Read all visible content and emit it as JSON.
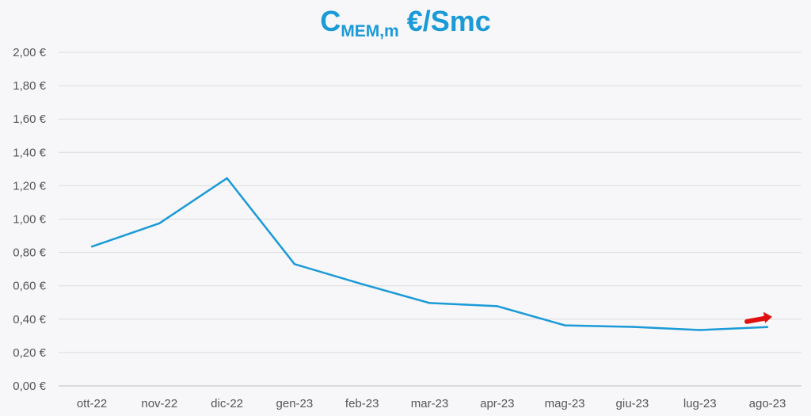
{
  "chart_data": {
    "type": "line",
    "title": {
      "main": "C",
      "subscript": "MEM,m",
      "unit": "€/Smc"
    },
    "categories": [
      "ott-22",
      "nov-22",
      "dic-22",
      "gen-23",
      "feb-23",
      "mar-23",
      "apr-23",
      "mag-23",
      "giu-23",
      "lug-23",
      "ago-23"
    ],
    "series": [
      {
        "values": [
          0.835,
          0.975,
          1.245,
          0.73,
          0.61,
          0.497,
          0.478,
          0.363,
          0.354,
          0.335,
          0.353
        ],
        "color": "#1a9ad6"
      }
    ],
    "yticks": [
      "0,00 €",
      "0,20 €",
      "0,40 €",
      "0,60 €",
      "0,80 €",
      "1,00 €",
      "1,20 €",
      "1,40 €",
      "1,60 €",
      "1,80 €",
      "2,00 €"
    ],
    "ylim": [
      0,
      2
    ],
    "grid": true,
    "legend": "none",
    "annotation": {
      "type": "arrow",
      "direction": "up-right",
      "color": "#e01010",
      "category": "ago-23",
      "value": 0.4
    }
  }
}
